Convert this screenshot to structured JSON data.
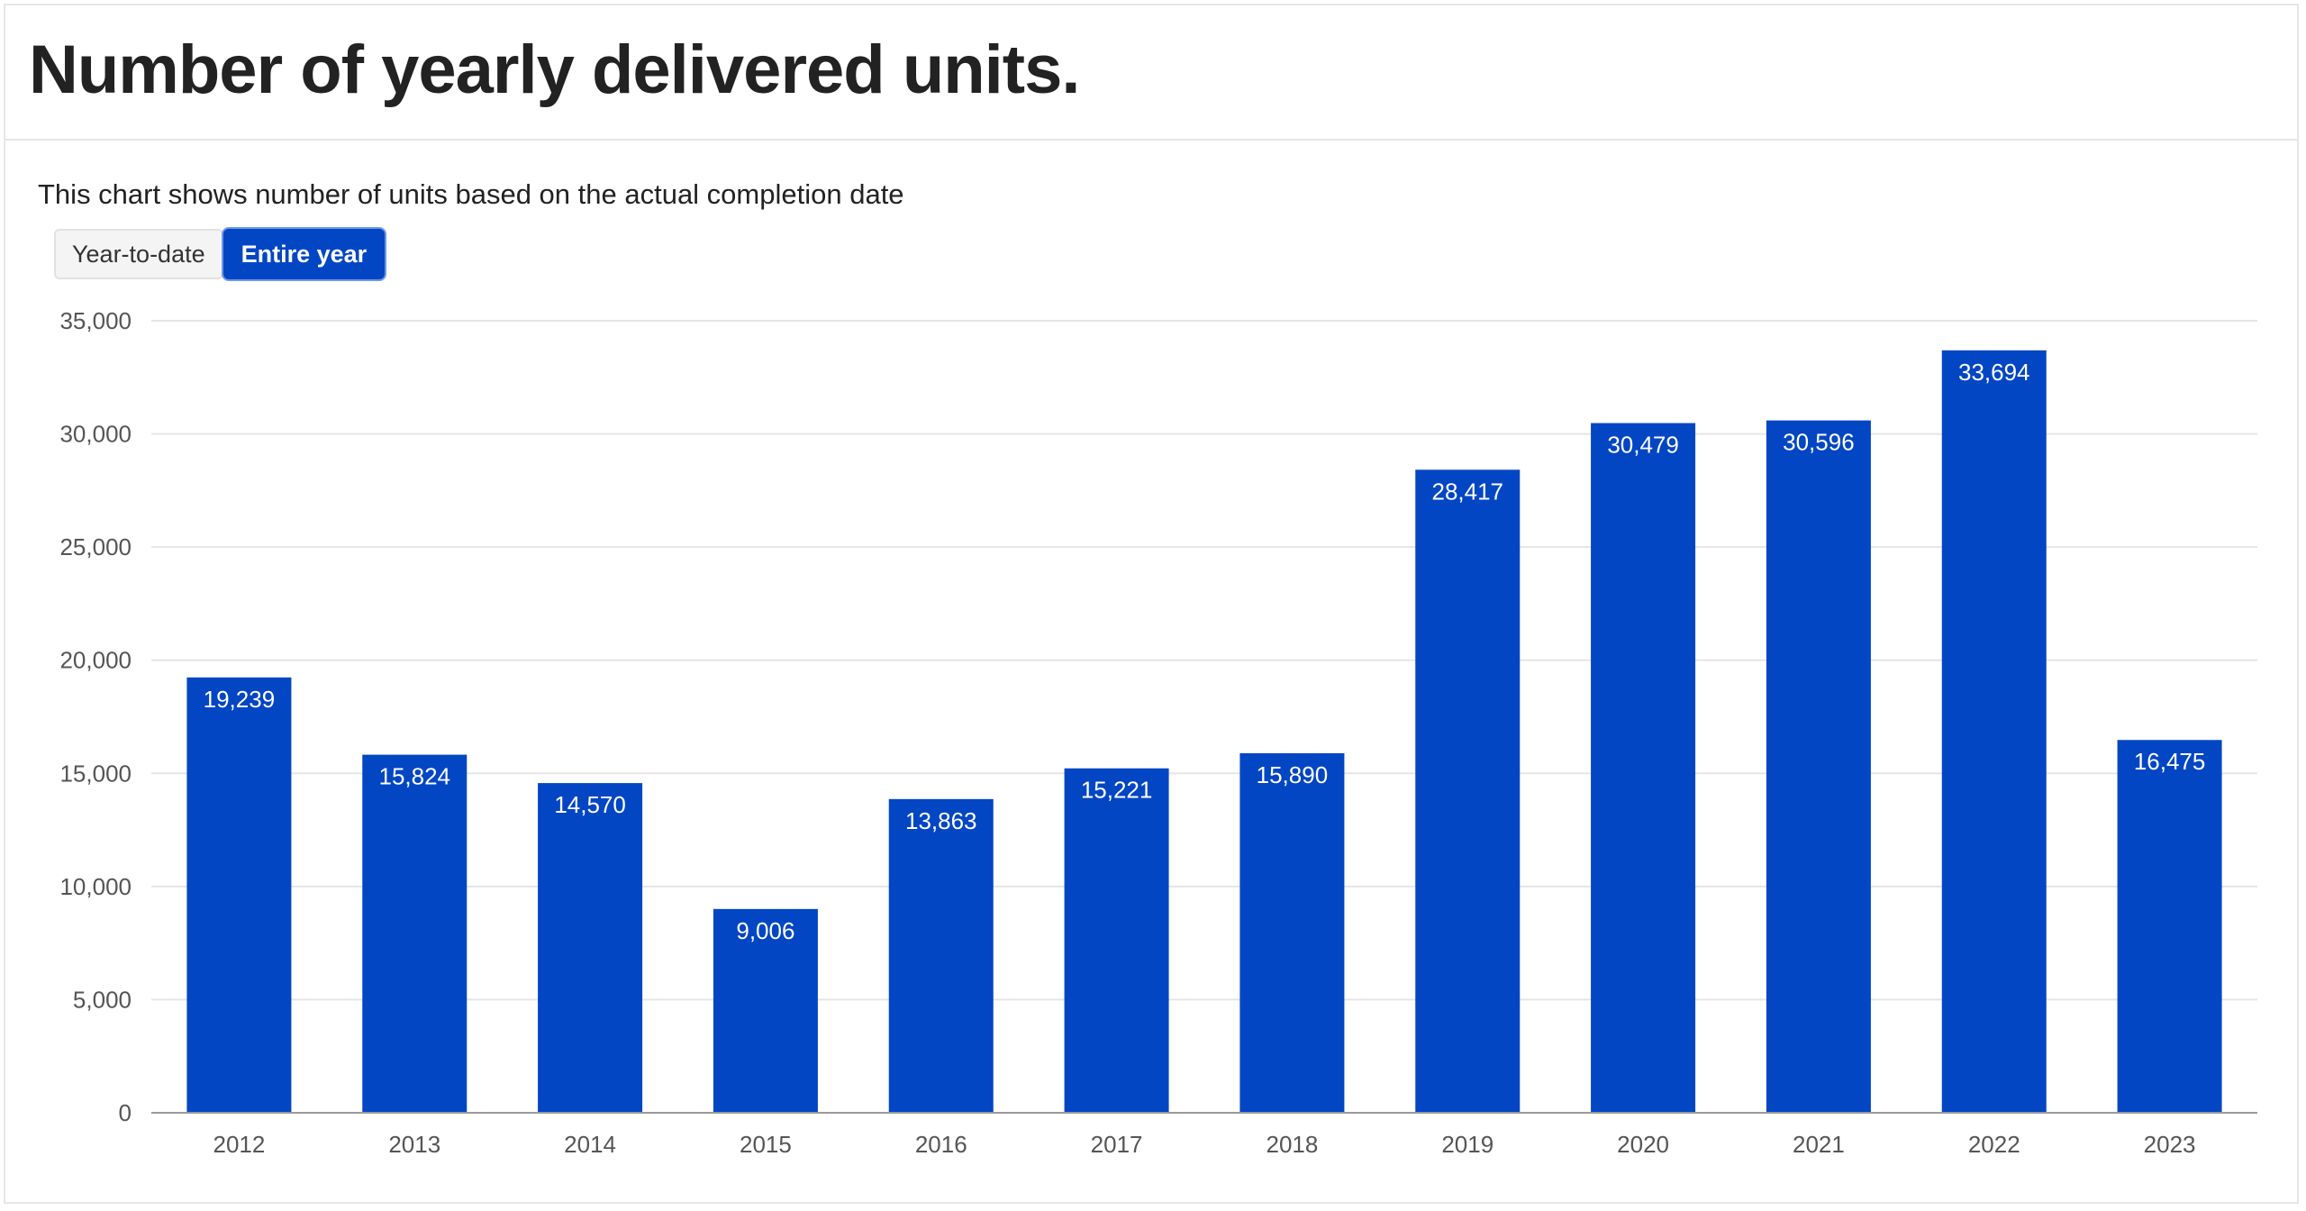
{
  "header": {
    "title": "Number of yearly delivered units."
  },
  "subtitle": "This chart shows number of units based on the actual completion date",
  "toggle": {
    "options": [
      "Year-to-date",
      "Entire year"
    ],
    "selected": "Entire year"
  },
  "colors": {
    "bar": "#0346c4",
    "grid": "#e5e5e5",
    "axis": "#999999"
  },
  "chart_data": {
    "type": "bar",
    "title": "Number of yearly delivered units.",
    "xlabel": "",
    "ylabel": "",
    "categories": [
      "2012",
      "2013",
      "2014",
      "2015",
      "2016",
      "2017",
      "2018",
      "2019",
      "2020",
      "2021",
      "2022",
      "2023"
    ],
    "values": [
      19239,
      15824,
      14570,
      9006,
      13863,
      15221,
      15890,
      28417,
      30479,
      30596,
      33694,
      16475
    ],
    "value_labels": [
      "19,239",
      "15,824",
      "14,570",
      "9,006",
      "13,863",
      "15,221",
      "15,890",
      "28,417",
      "30,479",
      "30,596",
      "33,694",
      "16,475"
    ],
    "ylim": [
      0,
      35000
    ],
    "yticks": [
      0,
      5000,
      10000,
      15000,
      20000,
      25000,
      30000,
      35000
    ],
    "ytick_labels": [
      "0",
      "5,000",
      "10,000",
      "15,000",
      "20,000",
      "25,000",
      "30,000",
      "35,000"
    ],
    "grid": true,
    "legend": "none"
  }
}
